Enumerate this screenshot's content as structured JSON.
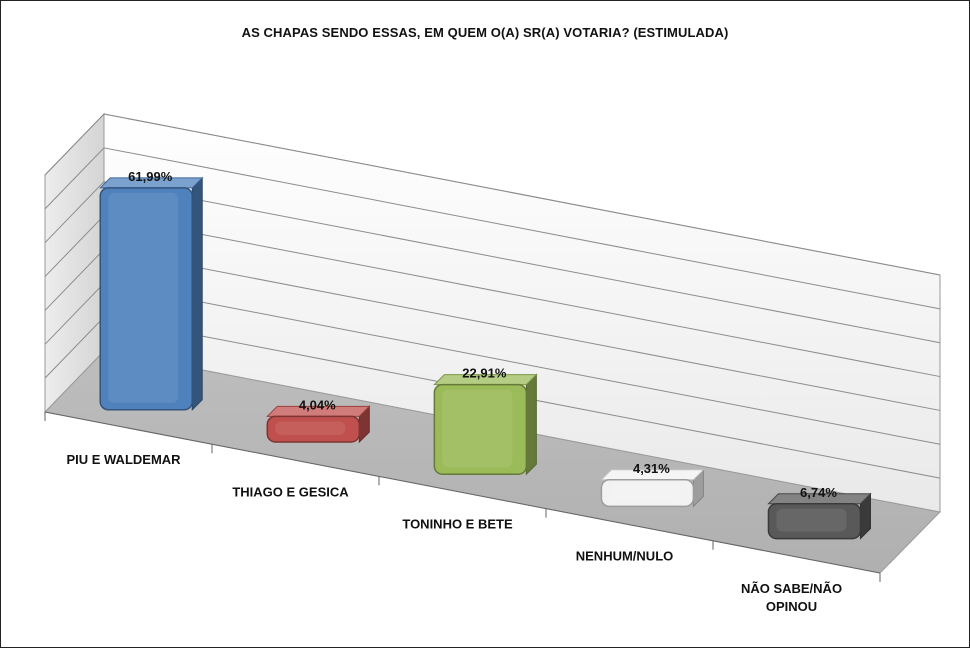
{
  "chart_data": {
    "type": "bar",
    "title": "AS CHAPAS SENDO ESSAS, EM QUEM O(A) SR(A) VOTARIA? (ESTIMULADA)",
    "categories": [
      "PIU E WALDEMAR",
      "THIAGO E GESICA",
      "TONINHO E BETE",
      "NENHUM/NULO",
      "NÃO SABE/NÃO OPINOU"
    ],
    "values": [
      61.99,
      4.04,
      22.91,
      4.31,
      6.74
    ],
    "value_labels": [
      "61,99%",
      "4,04%",
      "22,91%",
      "4,31%",
      "6,74%"
    ],
    "colors": [
      "#4f81bd",
      "#c0504d",
      "#9bbb59",
      "#f2f2f2",
      "#595959"
    ],
    "style": "3d",
    "grid": true,
    "legend": "none"
  }
}
